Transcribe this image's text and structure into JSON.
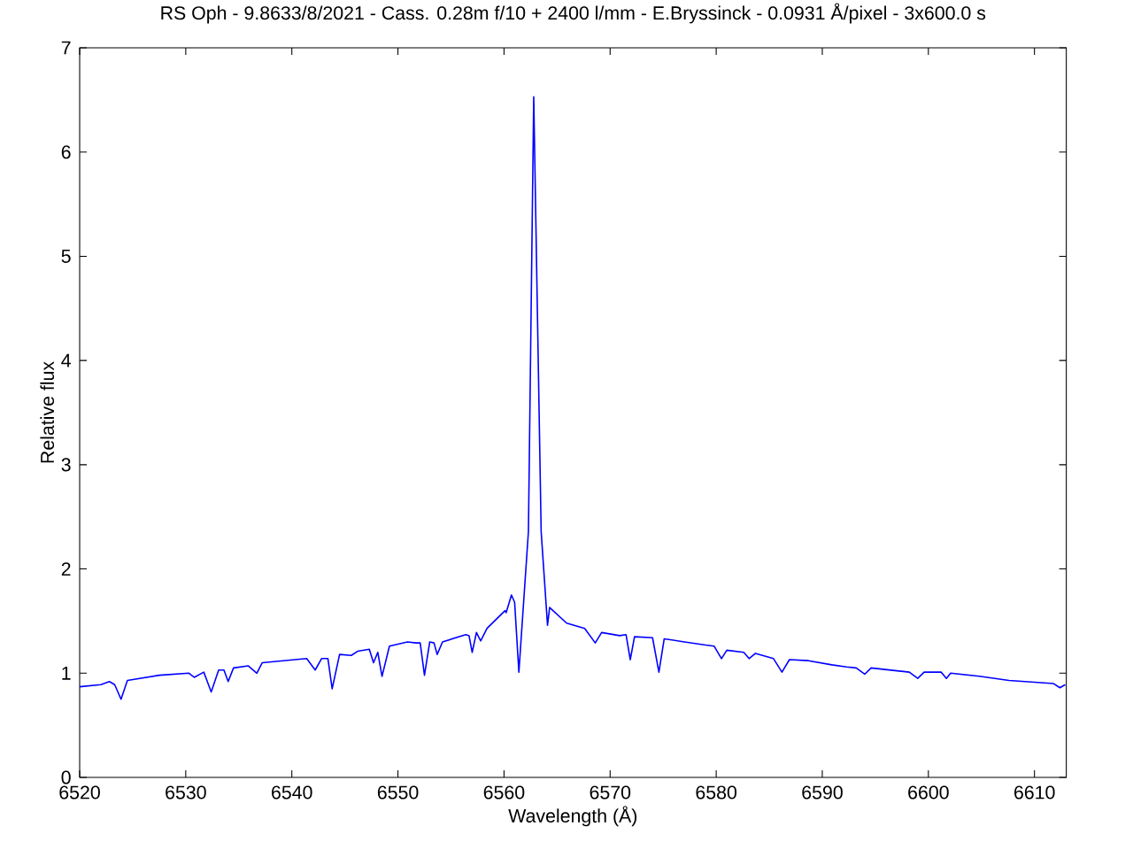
{
  "chart_data": {
    "type": "line",
    "title": "RS Oph - 9.8633/8/2021 - Cass. 0.28m f/10 + 2400 l/mm - E.Bryssinck - 0.0931 Å/pixel - 3x600.0 s",
    "xlabel": "Wavelength (Å)",
    "ylabel": "Relative flux",
    "xlim": [
      6520,
      6613
    ],
    "ylim": [
      0,
      7
    ],
    "xticks": [
      6520,
      6530,
      6540,
      6550,
      6560,
      6570,
      6580,
      6590,
      6600,
      6610
    ],
    "yticks": [
      0,
      1,
      2,
      3,
      4,
      5,
      6,
      7
    ],
    "grid": false,
    "marker": "none",
    "line_style": "solid",
    "series": [
      {
        "color": "#0000ff",
        "x": [
          6520.0,
          6522.0,
          6522.8,
          6523.3,
          6523.9,
          6524.5,
          6527.5,
          6530.3,
          6530.8,
          6531.7,
          6532.4,
          6533.1,
          6533.6,
          6534.0,
          6534.5,
          6535.9,
          6536.7,
          6537.2,
          6541.4,
          6542.2,
          6542.8,
          6543.4,
          6543.8,
          6544.5,
          6545.6,
          6546.2,
          6547.3,
          6547.7,
          6548.1,
          6548.5,
          6549.2,
          6550.9,
          6551.7,
          6552.1,
          6552.5,
          6553.0,
          6553.4,
          6553.7,
          6554.2,
          6556.4,
          6556.7,
          6557.0,
          6557.4,
          6557.8,
          6558.4,
          6560.1,
          6560.2,
          6560.7,
          6561.0,
          6561.4,
          6562.3,
          6562.8,
          6563.5,
          6564.1,
          6564.3,
          6565.9,
          6567.6,
          6568.6,
          6569.2,
          6570.9,
          6571.5,
          6571.9,
          6572.3,
          6574.0,
          6574.6,
          6575.1,
          6577.0,
          6579.0,
          6579.8,
          6580.5,
          6581.0,
          6582.6,
          6583.1,
          6583.7,
          6585.4,
          6586.2,
          6586.9,
          6588.7,
          6590.9,
          6592.3,
          6593.2,
          6594.0,
          6594.6,
          6598.2,
          6599.0,
          6599.6,
          6601.2,
          6601.7,
          6602.1,
          6604.8,
          6607.6,
          6611.8,
          6612.4,
          6612.9
        ],
        "values": [
          0.87,
          0.89,
          0.92,
          0.89,
          0.75,
          0.93,
          0.98,
          1.0,
          0.96,
          1.01,
          0.82,
          1.03,
          1.03,
          0.92,
          1.05,
          1.07,
          1.0,
          1.1,
          1.14,
          1.03,
          1.14,
          1.14,
          0.85,
          1.18,
          1.17,
          1.21,
          1.23,
          1.1,
          1.2,
          0.97,
          1.26,
          1.3,
          1.29,
          1.29,
          0.98,
          1.3,
          1.29,
          1.18,
          1.3,
          1.37,
          1.36,
          1.2,
          1.39,
          1.31,
          1.43,
          1.6,
          1.58,
          1.75,
          1.68,
          1.01,
          2.36,
          6.53,
          2.36,
          1.46,
          1.63,
          1.48,
          1.43,
          1.29,
          1.39,
          1.36,
          1.37,
          1.13,
          1.35,
          1.34,
          1.01,
          1.33,
          1.3,
          1.27,
          1.26,
          1.14,
          1.22,
          1.2,
          1.14,
          1.19,
          1.14,
          1.01,
          1.13,
          1.12,
          1.08,
          1.06,
          1.05,
          0.99,
          1.05,
          1.01,
          0.95,
          1.01,
          1.01,
          0.95,
          1.0,
          0.97,
          0.93,
          0.9,
          0.86,
          0.89
        ]
      }
    ]
  }
}
